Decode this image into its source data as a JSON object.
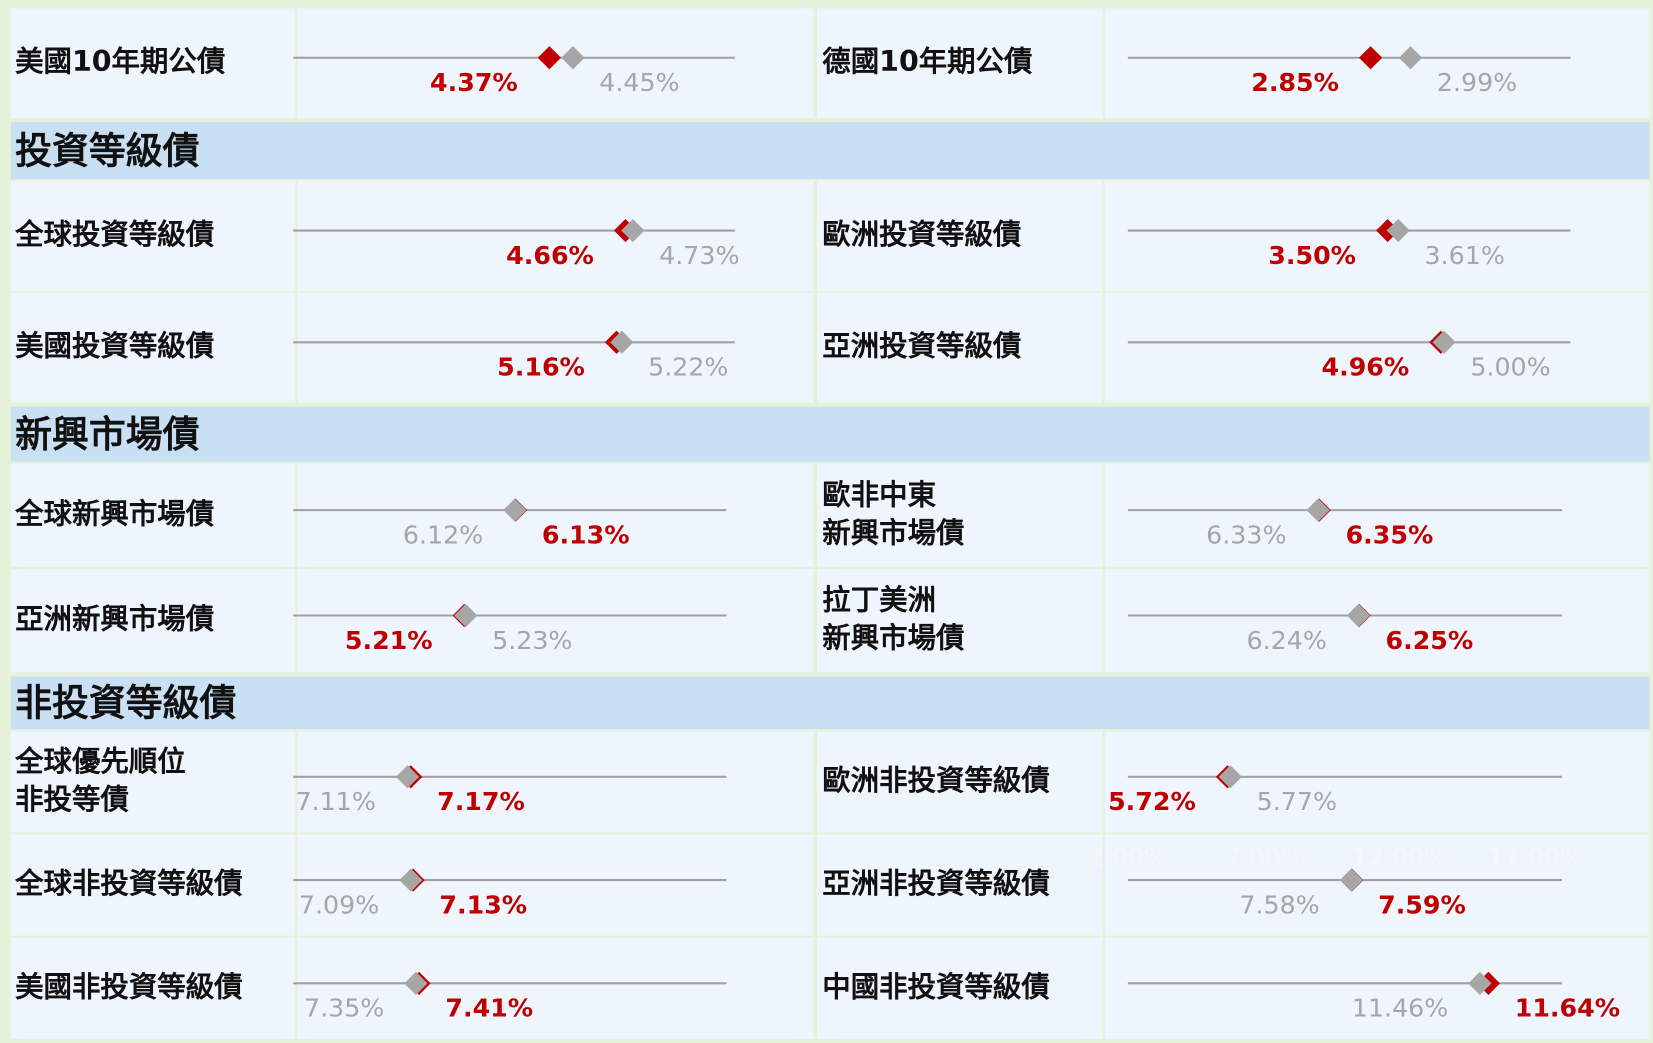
{
  "groups": [
    {
      "rows": [
        {
          "left": {
            "label": [
              "美國10年期公債"
            ],
            "red": 4.37,
            "red_label": "4.37%",
            "gray": 4.45,
            "gray_label": "4.45%",
            "xlim": [
              3.5,
              5.0
            ]
          },
          "right": {
            "label": [
              "德國10年期公債"
            ],
            "red": 2.85,
            "red_label": "2.85%",
            "gray": 2.99,
            "gray_label": "2.99%",
            "xlim": [
              2.0,
              3.55
            ]
          }
        }
      ]
    },
    {
      "title": "投資等級債",
      "rows": [
        {
          "left": {
            "label": [
              "全球投資等級債"
            ],
            "red": 4.66,
            "red_label": "4.66%",
            "gray": 4.73,
            "gray_label": "4.73%",
            "xlim": [
              1.5,
              5.7
            ]
          },
          "right": {
            "label": [
              "歐洲投資等級債"
            ],
            "red": 3.5,
            "red_label": "3.50%",
            "gray": 3.61,
            "gray_label": "3.61%",
            "xlim": [
              0.8,
              5.4
            ]
          }
        },
        {
          "left": {
            "label": [
              "美國投資等級債"
            ],
            "red": 5.16,
            "red_label": "5.16%",
            "gray": 5.22,
            "gray_label": "5.22%",
            "xlim": [
              1.5,
              6.5
            ]
          },
          "right": {
            "label": [
              "亞洲投資等級債"
            ],
            "red": 4.96,
            "red_label": "4.96%",
            "gray": 5.0,
            "gray_label": "5.00%",
            "xlim": [
              1.0,
              6.6
            ]
          }
        }
      ]
    },
    {
      "title": "新興市場債",
      "rows": [
        {
          "left": {
            "label": [
              "全球新興市場債"
            ],
            "red": 6.13,
            "red_label": "6.13%",
            "gray": 6.12,
            "gray_label": "6.12%",
            "xlim": [
              3.0,
              9.1
            ]
          },
          "right": {
            "label": [
              "歐非中東",
              "新興市場債"
            ],
            "red": 6.35,
            "red_label": "6.35%",
            "gray": 6.33,
            "gray_label": "6.33%",
            "xlim": [
              3.0,
              10.6
            ]
          }
        },
        {
          "left": {
            "label": [
              "亞洲新興市場債"
            ],
            "red": 5.21,
            "red_label": "5.21%",
            "gray": 5.23,
            "gray_label": "5.23%",
            "xlim": [
              3.0,
              8.6
            ]
          },
          "right": {
            "label": [
              "拉丁美洲",
              "新興市場債"
            ],
            "red": 6.25,
            "red_label": "6.25%",
            "gray": 6.24,
            "gray_label": "6.24%",
            "xlim": [
              3.0,
              9.1
            ]
          }
        }
      ]
    },
    {
      "title": "非投資等級債",
      "rows": [
        {
          "left": {
            "label": [
              "全球優先順位",
              "非投等債"
            ],
            "red": 7.17,
            "red_label": "7.17%",
            "gray": 7.11,
            "gray_label": "7.11%",
            "xlim": [
              5.0,
              13.0
            ]
          },
          "right": {
            "label": [
              "歐洲非投資等級債"
            ],
            "red": 5.72,
            "red_label": "5.72%",
            "gray": 5.77,
            "gray_label": "5.77%",
            "xlim": [
              4.0,
              11.5
            ]
          }
        },
        {
          "left": {
            "label": [
              "全球非投資等級債"
            ],
            "red": 7.13,
            "red_label": "7.13%",
            "gray": 7.09,
            "gray_label": "7.09%",
            "xlim": [
              5.0,
              12.7
            ]
          },
          "right": {
            "label": [
              "亞洲非投資等級債"
            ],
            "red": 7.59,
            "red_label": "7.59%",
            "gray": 7.58,
            "gray_label": "7.58%",
            "xlim": [
              3.0,
              11.9
            ]
          }
        },
        {
          "left": {
            "label": [
              "美國非投資等級債"
            ],
            "red": 7.41,
            "red_label": "7.41%",
            "gray": 7.35,
            "gray_label": "7.35%",
            "xlim": [
              5.0,
              13.3
            ]
          },
          "right": {
            "label": [
              "中國非投資等級債"
            ],
            "red": 11.64,
            "red_label": "11.64%",
            "gray": 11.46,
            "gray_label": "11.46%",
            "xlim": [
              4.0,
              13.2
            ]
          }
        }
      ]
    }
  ],
  "axis_labels": [
    "2.00%",
    "7.00%",
    "12.00%",
    "17.00%"
  ]
}
